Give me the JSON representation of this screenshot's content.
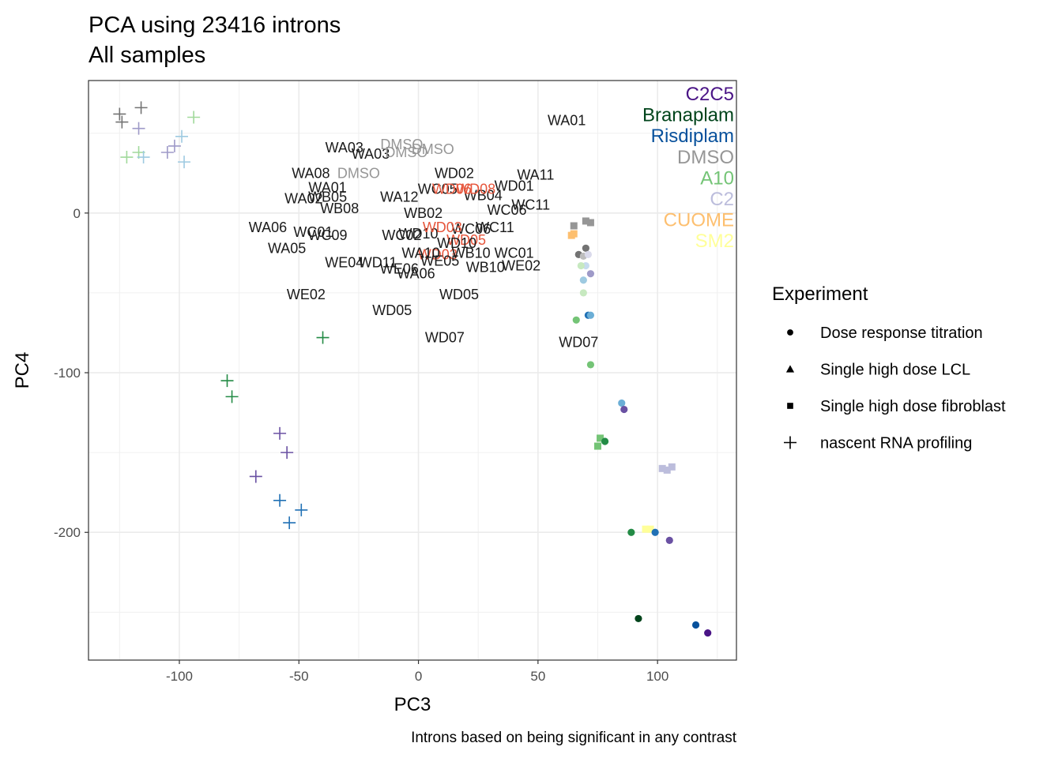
{
  "chart_data": {
    "type": "scatter",
    "title": "PCA using 23416 introns",
    "subtitle": "All samples",
    "xlabel": "PC3",
    "ylabel": "PC4",
    "caption": "Introns based on being significant in any contrast",
    "xlim": [
      -138,
      133
    ],
    "ylim": [
      -280,
      83
    ],
    "xticks": [
      -100,
      -50,
      0,
      50,
      100
    ],
    "xtick_labels": [
      "-100",
      "-50",
      "0",
      "50",
      "100"
    ],
    "yticks": [
      -200,
      -100,
      0
    ],
    "ytick_labels": [
      "-200",
      "-100",
      "0"
    ],
    "grid": true,
    "colors": {
      "C2C5": "#4a1486",
      "Branaplam": "#00441b",
      "Risdiplam": "#08519c",
      "DMSO": "#969696",
      "A10": "#74c476",
      "C2": "#bcbddc",
      "CUOME": "#fdbf6f",
      "SM2": "#ffff99",
      "green_mid": "#238b45",
      "green_light": "#a1d99b",
      "green_pale": "#c7e9c0",
      "blue_mid": "#2171b5",
      "blue_light": "#6baed6",
      "blue_pale": "#9ecae1",
      "blue_paler": "#c6dbef",
      "purple_mid": "#6a51a3",
      "purple_light": "#9e9ac8",
      "purple_pale": "#dadaeb",
      "grey_dark": "#737373",
      "grey_light": "#bdbdbd",
      "label_dark": "#1a1a1a",
      "label_red": "#e6553b"
    },
    "legend": {
      "title": "Experiment",
      "position": "right",
      "items": [
        {
          "label": "Dose response titration",
          "shape": "circle"
        },
        {
          "label": "Single high dose LCL",
          "shape": "triangle"
        },
        {
          "label": "Single high dose fibroblast",
          "shape": "square"
        },
        {
          "label": "nascent RNA profiling",
          "shape": "plus"
        }
      ]
    },
    "color_legend": [
      {
        "label": "C2C5",
        "color": "C2C5"
      },
      {
        "label": "Branaplam",
        "color": "Branaplam"
      },
      {
        "label": "Risdiplam",
        "color": "Risdiplam"
      },
      {
        "label": "DMSO",
        "color": "DMSO"
      },
      {
        "label": "A10",
        "color": "A10"
      },
      {
        "label": "C2",
        "color": "C2"
      },
      {
        "label": "CUOME",
        "color": "CUOME"
      },
      {
        "label": "SM2",
        "color": "SM2"
      }
    ],
    "points": [
      {
        "x": -125,
        "y": 62,
        "shape": "plus",
        "color": "grey_dark"
      },
      {
        "x": -116,
        "y": 66,
        "shape": "plus",
        "color": "grey_dark"
      },
      {
        "x": -124,
        "y": 57,
        "shape": "plus",
        "color": "grey_dark"
      },
      {
        "x": -117,
        "y": 53,
        "shape": "plus",
        "color": "purple_light"
      },
      {
        "x": -94,
        "y": 60,
        "shape": "plus",
        "color": "green_light"
      },
      {
        "x": -99,
        "y": 48,
        "shape": "plus",
        "color": "blue_pale"
      },
      {
        "x": -102,
        "y": 42,
        "shape": "plus",
        "color": "purple_light"
      },
      {
        "x": -105,
        "y": 38,
        "shape": "plus",
        "color": "purple_light"
      },
      {
        "x": -117,
        "y": 38,
        "shape": "plus",
        "color": "green_light"
      },
      {
        "x": -122,
        "y": 35,
        "shape": "plus",
        "color": "green_light"
      },
      {
        "x": -115,
        "y": 35,
        "shape": "plus",
        "color": "blue_pale"
      },
      {
        "x": -98,
        "y": 32,
        "shape": "plus",
        "color": "blue_pale"
      },
      {
        "x": -40,
        "y": -78,
        "shape": "plus",
        "color": "green_mid"
      },
      {
        "x": -80,
        "y": -105,
        "shape": "plus",
        "color": "green_mid"
      },
      {
        "x": -78,
        "y": -115,
        "shape": "plus",
        "color": "green_mid"
      },
      {
        "x": -58,
        "y": -138,
        "shape": "plus",
        "color": "purple_mid"
      },
      {
        "x": -55,
        "y": -150,
        "shape": "plus",
        "color": "purple_mid"
      },
      {
        "x": -68,
        "y": -165,
        "shape": "plus",
        "color": "purple_mid"
      },
      {
        "x": -58,
        "y": -180,
        "shape": "plus",
        "color": "blue_mid"
      },
      {
        "x": -49,
        "y": -186,
        "shape": "plus",
        "color": "blue_mid"
      },
      {
        "x": -54,
        "y": -194,
        "shape": "plus",
        "color": "blue_mid"
      },
      {
        "x": 65,
        "y": -8,
        "shape": "square",
        "color": "DMSO"
      },
      {
        "x": 70,
        "y": -5,
        "shape": "square",
        "color": "DMSO"
      },
      {
        "x": 72,
        "y": -6,
        "shape": "square",
        "color": "DMSO"
      },
      {
        "x": 64,
        "y": -14,
        "shape": "square",
        "color": "CUOME"
      },
      {
        "x": 65,
        "y": -13,
        "shape": "square",
        "color": "CUOME"
      },
      {
        "x": 70,
        "y": -22,
        "shape": "circle",
        "color": "grey_dark"
      },
      {
        "x": 67,
        "y": -26,
        "shape": "circle",
        "color": "grey_dark"
      },
      {
        "x": 69,
        "y": -27,
        "shape": "circle",
        "color": "grey_light"
      },
      {
        "x": 71,
        "y": -26,
        "shape": "circle",
        "color": "purple_pale"
      },
      {
        "x": 70,
        "y": -33,
        "shape": "circle",
        "color": "blue_paler"
      },
      {
        "x": 68,
        "y": -33,
        "shape": "circle",
        "color": "green_pale"
      },
      {
        "x": 72,
        "y": -38,
        "shape": "circle",
        "color": "purple_light"
      },
      {
        "x": 69,
        "y": -42,
        "shape": "circle",
        "color": "blue_pale"
      },
      {
        "x": 69,
        "y": -50,
        "shape": "circle",
        "color": "green_pale"
      },
      {
        "x": 71,
        "y": -64,
        "shape": "circle",
        "color": "blue_mid"
      },
      {
        "x": 72,
        "y": -64,
        "shape": "circle",
        "color": "blue_light"
      },
      {
        "x": 66,
        "y": -67,
        "shape": "circle",
        "color": "A10"
      },
      {
        "x": 72,
        "y": -95,
        "shape": "circle",
        "color": "A10"
      },
      {
        "x": 85,
        "y": -119,
        "shape": "circle",
        "color": "blue_light"
      },
      {
        "x": 86,
        "y": -123,
        "shape": "circle",
        "color": "purple_mid"
      },
      {
        "x": 76,
        "y": -141,
        "shape": "square",
        "color": "A10"
      },
      {
        "x": 78,
        "y": -143,
        "shape": "circle",
        "color": "green_mid"
      },
      {
        "x": 75,
        "y": -146,
        "shape": "square",
        "color": "A10"
      },
      {
        "x": 102,
        "y": -160,
        "shape": "square",
        "color": "C2"
      },
      {
        "x": 104,
        "y": -161,
        "shape": "square",
        "color": "C2"
      },
      {
        "x": 106,
        "y": -159,
        "shape": "square",
        "color": "C2"
      },
      {
        "x": 95,
        "y": -198,
        "shape": "square",
        "color": "SM2"
      },
      {
        "x": 97,
        "y": -198,
        "shape": "square",
        "color": "SM2"
      },
      {
        "x": 89,
        "y": -200,
        "shape": "circle",
        "color": "green_mid"
      },
      {
        "x": 99,
        "y": -200,
        "shape": "circle",
        "color": "blue_mid"
      },
      {
        "x": 105,
        "y": -205,
        "shape": "circle",
        "color": "purple_mid"
      },
      {
        "x": 92,
        "y": -254,
        "shape": "circle",
        "color": "Branaplam"
      },
      {
        "x": 116,
        "y": -258,
        "shape": "circle",
        "color": "Risdiplam"
      },
      {
        "x": 121,
        "y": -263,
        "shape": "circle",
        "color": "C2C5"
      }
    ],
    "annotations": [
      {
        "text": "WA01",
        "x": 62,
        "y": 58,
        "color": "label_dark"
      },
      {
        "text": "WA03",
        "x": -31,
        "y": 41,
        "color": "label_dark"
      },
      {
        "text": "WA03",
        "x": -20,
        "y": 37,
        "color": "label_dark"
      },
      {
        "text": "DMSO",
        "x": -7,
        "y": 43,
        "color": "DMSO"
      },
      {
        "text": "DMSO",
        "x": 6,
        "y": 40,
        "color": "DMSO"
      },
      {
        "text": "DMSO",
        "x": -5,
        "y": 38,
        "color": "DMSO"
      },
      {
        "text": "WA08",
        "x": -45,
        "y": 25,
        "color": "label_dark"
      },
      {
        "text": "DMSO",
        "x": -25,
        "y": 25,
        "color": "DMSO"
      },
      {
        "text": "WA11",
        "x": 49,
        "y": 24,
        "color": "label_dark"
      },
      {
        "text": "WD02",
        "x": 15,
        "y": 25,
        "color": "label_dark"
      },
      {
        "text": "WA01",
        "x": -38,
        "y": 16,
        "color": "label_dark"
      },
      {
        "text": "WA02",
        "x": -48,
        "y": 9,
        "color": "label_dark"
      },
      {
        "text": "WB08",
        "x": -33,
        "y": 3,
        "color": "label_dark"
      },
      {
        "text": "WB05",
        "x": -38,
        "y": 10,
        "color": "label_dark"
      },
      {
        "text": "WC05",
        "x": 8,
        "y": 15,
        "color": "label_dark"
      },
      {
        "text": "WD01",
        "x": 40,
        "y": 17,
        "color": "label_dark"
      },
      {
        "text": "WB04",
        "x": 27,
        "y": 11,
        "color": "label_dark"
      },
      {
        "text": "WC11",
        "x": 47,
        "y": 5,
        "color": "label_dark"
      },
      {
        "text": "WC06",
        "x": 37,
        "y": 2,
        "color": "label_dark"
      },
      {
        "text": "WD08",
        "x": 24,
        "y": 15,
        "color": "label_red"
      },
      {
        "text": "WD06",
        "x": 14,
        "y": 15,
        "color": "label_red"
      },
      {
        "text": "WA12",
        "x": -8,
        "y": 10,
        "color": "label_dark"
      },
      {
        "text": "WB02",
        "x": 2,
        "y": 0,
        "color": "label_dark"
      },
      {
        "text": "WA06",
        "x": -63,
        "y": -9,
        "color": "label_dark"
      },
      {
        "text": "WC01",
        "x": -44,
        "y": -12,
        "color": "label_dark"
      },
      {
        "text": "WC09",
        "x": -38,
        "y": -14,
        "color": "label_dark"
      },
      {
        "text": "WD10",
        "x": 0,
        "y": -13,
        "color": "label_dark"
      },
      {
        "text": "WC11",
        "x": 32,
        "y": -9,
        "color": "label_dark"
      },
      {
        "text": "WC06",
        "x": 22,
        "y": -10,
        "color": "label_dark"
      },
      {
        "text": "WD03",
        "x": 10,
        "y": -9,
        "color": "label_red"
      },
      {
        "text": "WD05",
        "x": 20,
        "y": -17,
        "color": "label_red"
      },
      {
        "text": "WC02",
        "x": -7,
        "y": -14,
        "color": "label_dark"
      },
      {
        "text": "WD10",
        "x": 16,
        "y": -19,
        "color": "label_dark"
      },
      {
        "text": "WA05",
        "x": -55,
        "y": -22,
        "color": "label_dark"
      },
      {
        "text": "WD03",
        "x": 8,
        "y": -26,
        "color": "label_red"
      },
      {
        "text": "WB10",
        "x": 22,
        "y": -25,
        "color": "label_dark"
      },
      {
        "text": "WC01",
        "x": 40,
        "y": -25,
        "color": "label_dark"
      },
      {
        "text": "WA10",
        "x": 1,
        "y": -25,
        "color": "label_dark"
      },
      {
        "text": "WE04",
        "x": -31,
        "y": -31,
        "color": "label_dark"
      },
      {
        "text": "WD11",
        "x": -17,
        "y": -31,
        "color": "label_dark"
      },
      {
        "text": "WE06",
        "x": -8,
        "y": -35,
        "color": "label_dark"
      },
      {
        "text": "WE05",
        "x": 9,
        "y": -30,
        "color": "label_dark"
      },
      {
        "text": "WB10",
        "x": 28,
        "y": -34,
        "color": "label_dark"
      },
      {
        "text": "WE02",
        "x": 43,
        "y": -33,
        "color": "label_dark"
      },
      {
        "text": "WA06",
        "x": -1,
        "y": -38,
        "color": "label_dark"
      },
      {
        "text": "WE02",
        "x": -47,
        "y": -51,
        "color": "label_dark"
      },
      {
        "text": "WD05",
        "x": 17,
        "y": -51,
        "color": "label_dark"
      },
      {
        "text": "WD05",
        "x": -11,
        "y": -61,
        "color": "label_dark"
      },
      {
        "text": "WD07",
        "x": 11,
        "y": -78,
        "color": "label_dark"
      },
      {
        "text": "WD07",
        "x": 67,
        "y": -81,
        "color": "label_dark"
      }
    ]
  }
}
